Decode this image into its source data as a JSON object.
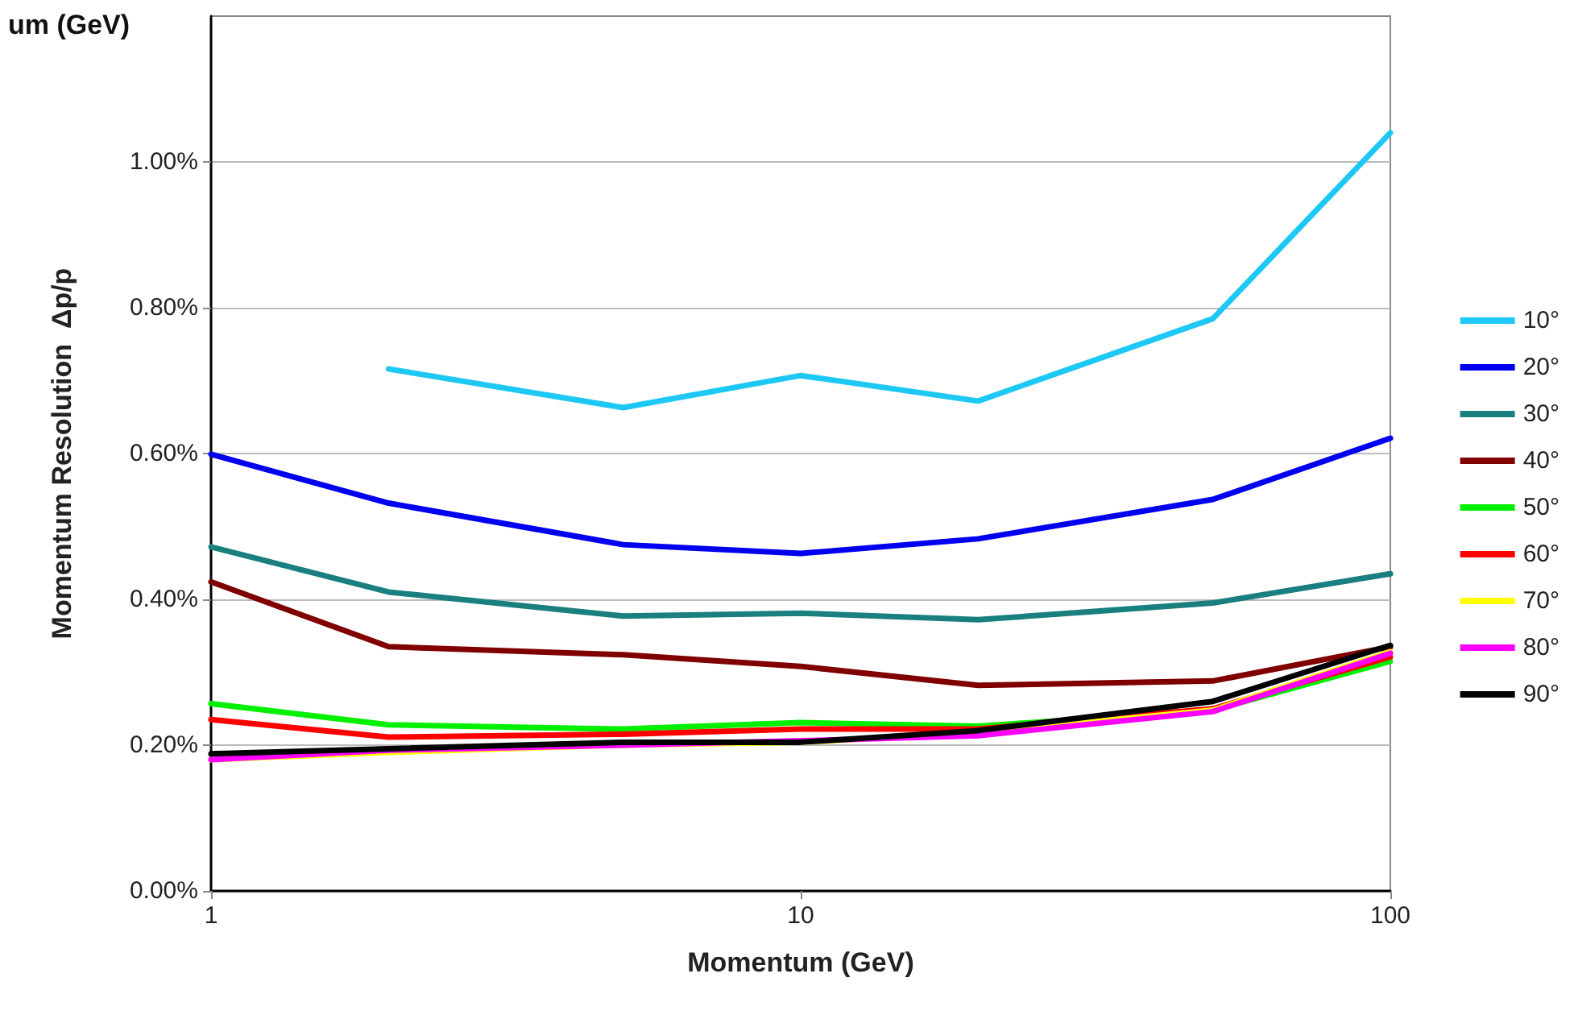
{
  "chart_data": {
    "type": "line",
    "title": "um (GeV)",
    "xlabel": "Momentum (GeV)",
    "ylabel": "Momentum Resolution  Δp/p",
    "x": [
      1,
      2,
      5,
      10,
      20,
      50,
      100
    ],
    "log": "x",
    "xlim": [
      1,
      100
    ],
    "xticks": [
      1,
      10,
      100
    ],
    "ylim": [
      0,
      1.2
    ],
    "yticks": [
      {
        "value": 0,
        "label": "0.00%"
      },
      {
        "value": 0.2,
        "label": "0.20%"
      },
      {
        "value": 0.4,
        "label": "0.40%"
      },
      {
        "value": 0.6,
        "label": "0.60%"
      },
      {
        "value": 0.8,
        "label": "0.80%"
      },
      {
        "value": 1.0,
        "label": "1.00%"
      }
    ],
    "grid": "y",
    "legend": "right",
    "marker": "none",
    "line_style": "solid",
    "series": [
      {
        "name": "10°",
        "color": "#1ec8f5",
        "values": [
          null,
          0.716,
          0.663,
          0.707,
          0.672,
          0.785,
          1.04
        ]
      },
      {
        "name": "20°",
        "color": "#0000f0",
        "values": [
          0.599,
          0.532,
          0.475,
          0.463,
          0.483,
          0.537,
          0.621
        ]
      },
      {
        "name": "30°",
        "color": "#1a7f7f",
        "values": [
          0.472,
          0.41,
          0.377,
          0.381,
          0.372,
          0.395,
          0.435
        ]
      },
      {
        "name": "40°",
        "color": "#800000",
        "values": [
          0.424,
          0.335,
          0.324,
          0.308,
          0.282,
          0.288,
          0.335
        ]
      },
      {
        "name": "50°",
        "color": "#00f000",
        "values": [
          0.257,
          0.228,
          0.222,
          0.231,
          0.226,
          0.248,
          0.315
        ]
      },
      {
        "name": "60°",
        "color": "#ff0000",
        "values": [
          0.235,
          0.211,
          0.215,
          0.222,
          0.222,
          0.25,
          0.321
        ]
      },
      {
        "name": "70°",
        "color": "#ffff00",
        "values": [
          0.18,
          0.19,
          0.2,
          0.204,
          0.217,
          0.248,
          0.328
        ]
      },
      {
        "name": "80°",
        "color": "#ff00ff",
        "values": [
          0.18,
          0.193,
          0.2,
          0.206,
          0.213,
          0.246,
          0.326
        ]
      },
      {
        "name": "90°",
        "color": "#000000",
        "values": [
          0.188,
          0.195,
          0.204,
          0.204,
          0.22,
          0.26,
          0.337
        ]
      }
    ]
  }
}
